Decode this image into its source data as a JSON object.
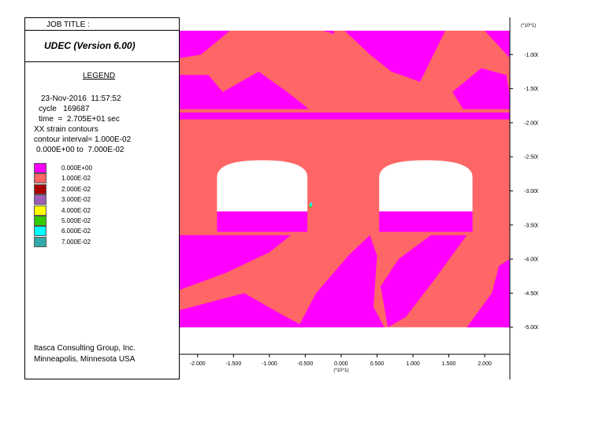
{
  "header": {
    "job_title": "JOB TITLE :",
    "app_title": "UDEC (Version 6.00)"
  },
  "legend": {
    "title": "LEGEND",
    "date_line": "23-Nov-2016  11:57:52",
    "cycle_line": "cycle   169687",
    "time_line": "time  =  2.705E+01 sec",
    "contour_type": "XX strain contours",
    "contour_interval": "contour interval= 1.000E-02",
    "contour_range": "0.000E+00 to  7.000E-02",
    "items": [
      {
        "label": "0.000E+00",
        "color": "#ff00ff"
      },
      {
        "label": "1.000E-02",
        "color": "#ff6666"
      },
      {
        "label": "2.000E-02",
        "color": "#aa0000"
      },
      {
        "label": "3.000E-02",
        "color": "#9e5fb8"
      },
      {
        "label": "4.000E-02",
        "color": "#ffff00"
      },
      {
        "label": "5.000E-02",
        "color": "#33cc00"
      },
      {
        "label": "6.000E-02",
        "color": "#00ffff"
      },
      {
        "label": "7.000E-02",
        "color": "#33aaaa"
      }
    ]
  },
  "footer": {
    "company_line1": "Itasca Consulting Group, Inc.",
    "company_line2": "Minneapolis, Minnesota  USA"
  },
  "chart_data": {
    "type": "heatmap",
    "x_axis": {
      "multiplier_label": "(*10^1)",
      "ticks": [
        -2.0,
        -1.5,
        -1.0,
        -0.5,
        0.0,
        0.5,
        1.0,
        1.5,
        2.0
      ],
      "tick_labels": [
        "-2.000",
        "-1.500",
        "-1.000",
        "-0.500",
        "0.000",
        "0.500",
        "1.000",
        "1.500",
        "2.000"
      ],
      "range": [
        -2.25,
        2.35
      ]
    },
    "y_axis": {
      "multiplier_label": "(*10^1)",
      "ticks": [
        -1.0,
        -1.5,
        -2.0,
        -2.5,
        -3.0,
        -3.5,
        -4.0,
        -4.5,
        -5.0
      ],
      "tick_labels": [
        "-1.000",
        "-1.500",
        "-2.000",
        "-2.500",
        "-3.000",
        "-3.500",
        "-4.000",
        "-4.500",
        "-5.000"
      ],
      "range": [
        -5.2,
        -0.65
      ]
    },
    "contour_levels": [
      0.0,
      0.01,
      0.02,
      0.03,
      0.04,
      0.05,
      0.06,
      0.07
    ],
    "background_level": 0.01,
    "openings": [
      {
        "x_min": -1.73,
        "x_max": -0.47,
        "y_floor": -3.3,
        "y_springline": -2.8,
        "y_crown": -2.55
      },
      {
        "x_min": 0.53,
        "x_max": 1.83,
        "y_floor": -3.3,
        "y_springline": -2.8,
        "y_crown": -2.55
      }
    ],
    "zones": [
      {
        "level": 0.0,
        "points": [
          [
            -2.25,
            -0.65
          ],
          [
            -1.55,
            -0.65
          ],
          [
            -1.95,
            -1.0
          ],
          [
            -2.25,
            -1.05
          ]
        ]
      },
      {
        "level": 0.0,
        "points": [
          [
            -0.25,
            -0.65
          ],
          [
            -0.1,
            -0.65
          ],
          [
            -0.1,
            -0.7
          ]
        ]
      },
      {
        "level": 0.0,
        "points": [
          [
            0.05,
            -0.65
          ],
          [
            1.45,
            -0.65
          ],
          [
            1.1,
            -1.4
          ],
          [
            0.7,
            -1.25
          ],
          [
            0.4,
            -1.0
          ]
        ]
      },
      {
        "level": 0.0,
        "points": [
          [
            2.0,
            -0.65
          ],
          [
            2.35,
            -0.65
          ],
          [
            2.35,
            -1.05
          ]
        ]
      },
      {
        "level": 0.0,
        "points": [
          [
            -2.25,
            -1.3
          ],
          [
            -1.85,
            -1.3
          ],
          [
            -1.65,
            -1.55
          ],
          [
            -1.15,
            -1.25
          ],
          [
            -0.75,
            -1.55
          ],
          [
            -0.45,
            -1.8
          ],
          [
            -2.25,
            -1.8
          ]
        ]
      },
      {
        "level": 0.0,
        "points": [
          [
            1.55,
            -1.55
          ],
          [
            1.95,
            -1.2
          ],
          [
            2.3,
            -1.3
          ],
          [
            2.35,
            -1.6
          ],
          [
            2.35,
            -1.8
          ],
          [
            1.7,
            -1.8
          ]
        ]
      },
      {
        "level": 0.0,
        "points": [
          [
            -2.25,
            -1.85
          ],
          [
            2.35,
            -1.85
          ],
          [
            2.35,
            -1.95
          ],
          [
            -2.25,
            -1.95
          ]
        ]
      },
      {
        "level": 0.0,
        "points": [
          [
            -1.73,
            -3.3
          ],
          [
            -0.47,
            -3.3
          ],
          [
            -0.47,
            -3.6
          ],
          [
            -1.73,
            -3.6
          ]
        ]
      },
      {
        "level": 0.0,
        "points": [
          [
            0.53,
            -3.3
          ],
          [
            1.83,
            -3.3
          ],
          [
            1.83,
            -3.6
          ],
          [
            0.53,
            -3.6
          ]
        ]
      },
      {
        "level": 0.0,
        "points": [
          [
            -2.25,
            -3.65
          ],
          [
            -2.25,
            -4.45
          ],
          [
            -1.6,
            -4.2
          ],
          [
            -1.0,
            -3.9
          ],
          [
            -0.7,
            -3.65
          ]
        ]
      },
      {
        "level": 0.0,
        "points": [
          [
            -2.25,
            -4.75
          ],
          [
            -2.25,
            -5.0
          ],
          [
            -0.5,
            -5.0
          ],
          [
            -0.85,
            -4.8
          ],
          [
            -1.35,
            -4.5
          ]
        ]
      },
      {
        "level": 0.0,
        "points": [
          [
            -0.6,
            -5.0
          ],
          [
            0.6,
            -5.0
          ],
          [
            0.45,
            -4.7
          ],
          [
            0.5,
            -3.95
          ],
          [
            0.4,
            -3.65
          ],
          [
            0.1,
            -3.95
          ],
          [
            -0.35,
            -4.5
          ]
        ]
      },
      {
        "level": 0.0,
        "points": [
          [
            1.25,
            -3.65
          ],
          [
            1.75,
            -3.65
          ],
          [
            1.3,
            -4.3
          ],
          [
            0.9,
            -4.85
          ],
          [
            0.65,
            -5.0
          ],
          [
            0.55,
            -4.4
          ],
          [
            0.8,
            -4.0
          ]
        ]
      },
      {
        "level": 0.0,
        "points": [
          [
            2.2,
            -4.1
          ],
          [
            2.35,
            -4.0
          ],
          [
            2.35,
            -5.0
          ],
          [
            1.75,
            -5.0
          ],
          [
            2.1,
            -4.5
          ]
        ]
      }
    ],
    "annotations": [
      {
        "level": 0.05,
        "x": -0.43,
        "y": -3.22
      },
      {
        "level": 0.06,
        "x": -0.42,
        "y": -3.2
      }
    ]
  }
}
